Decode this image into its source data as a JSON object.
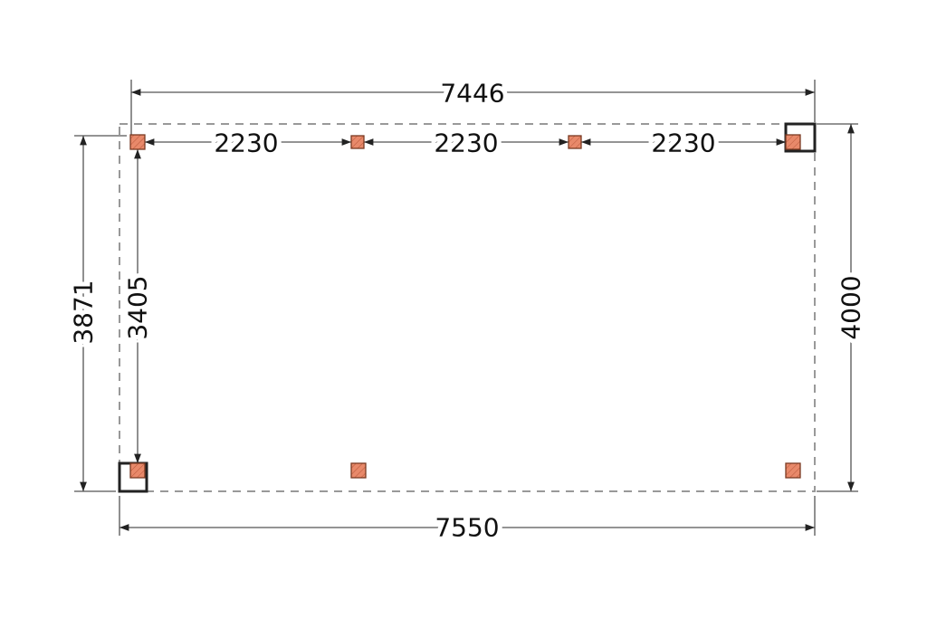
{
  "dimensions": {
    "top_overall": "7446",
    "bottom_overall": "7550",
    "left_overall": "3871",
    "left_inner": "3405",
    "right_overall": "4000",
    "post_spacing": [
      "2230",
      "2230",
      "2230"
    ]
  },
  "colors": {
    "post_fill": "#e8896a",
    "outline": "#999999",
    "dimension_line": "#555555"
  }
}
